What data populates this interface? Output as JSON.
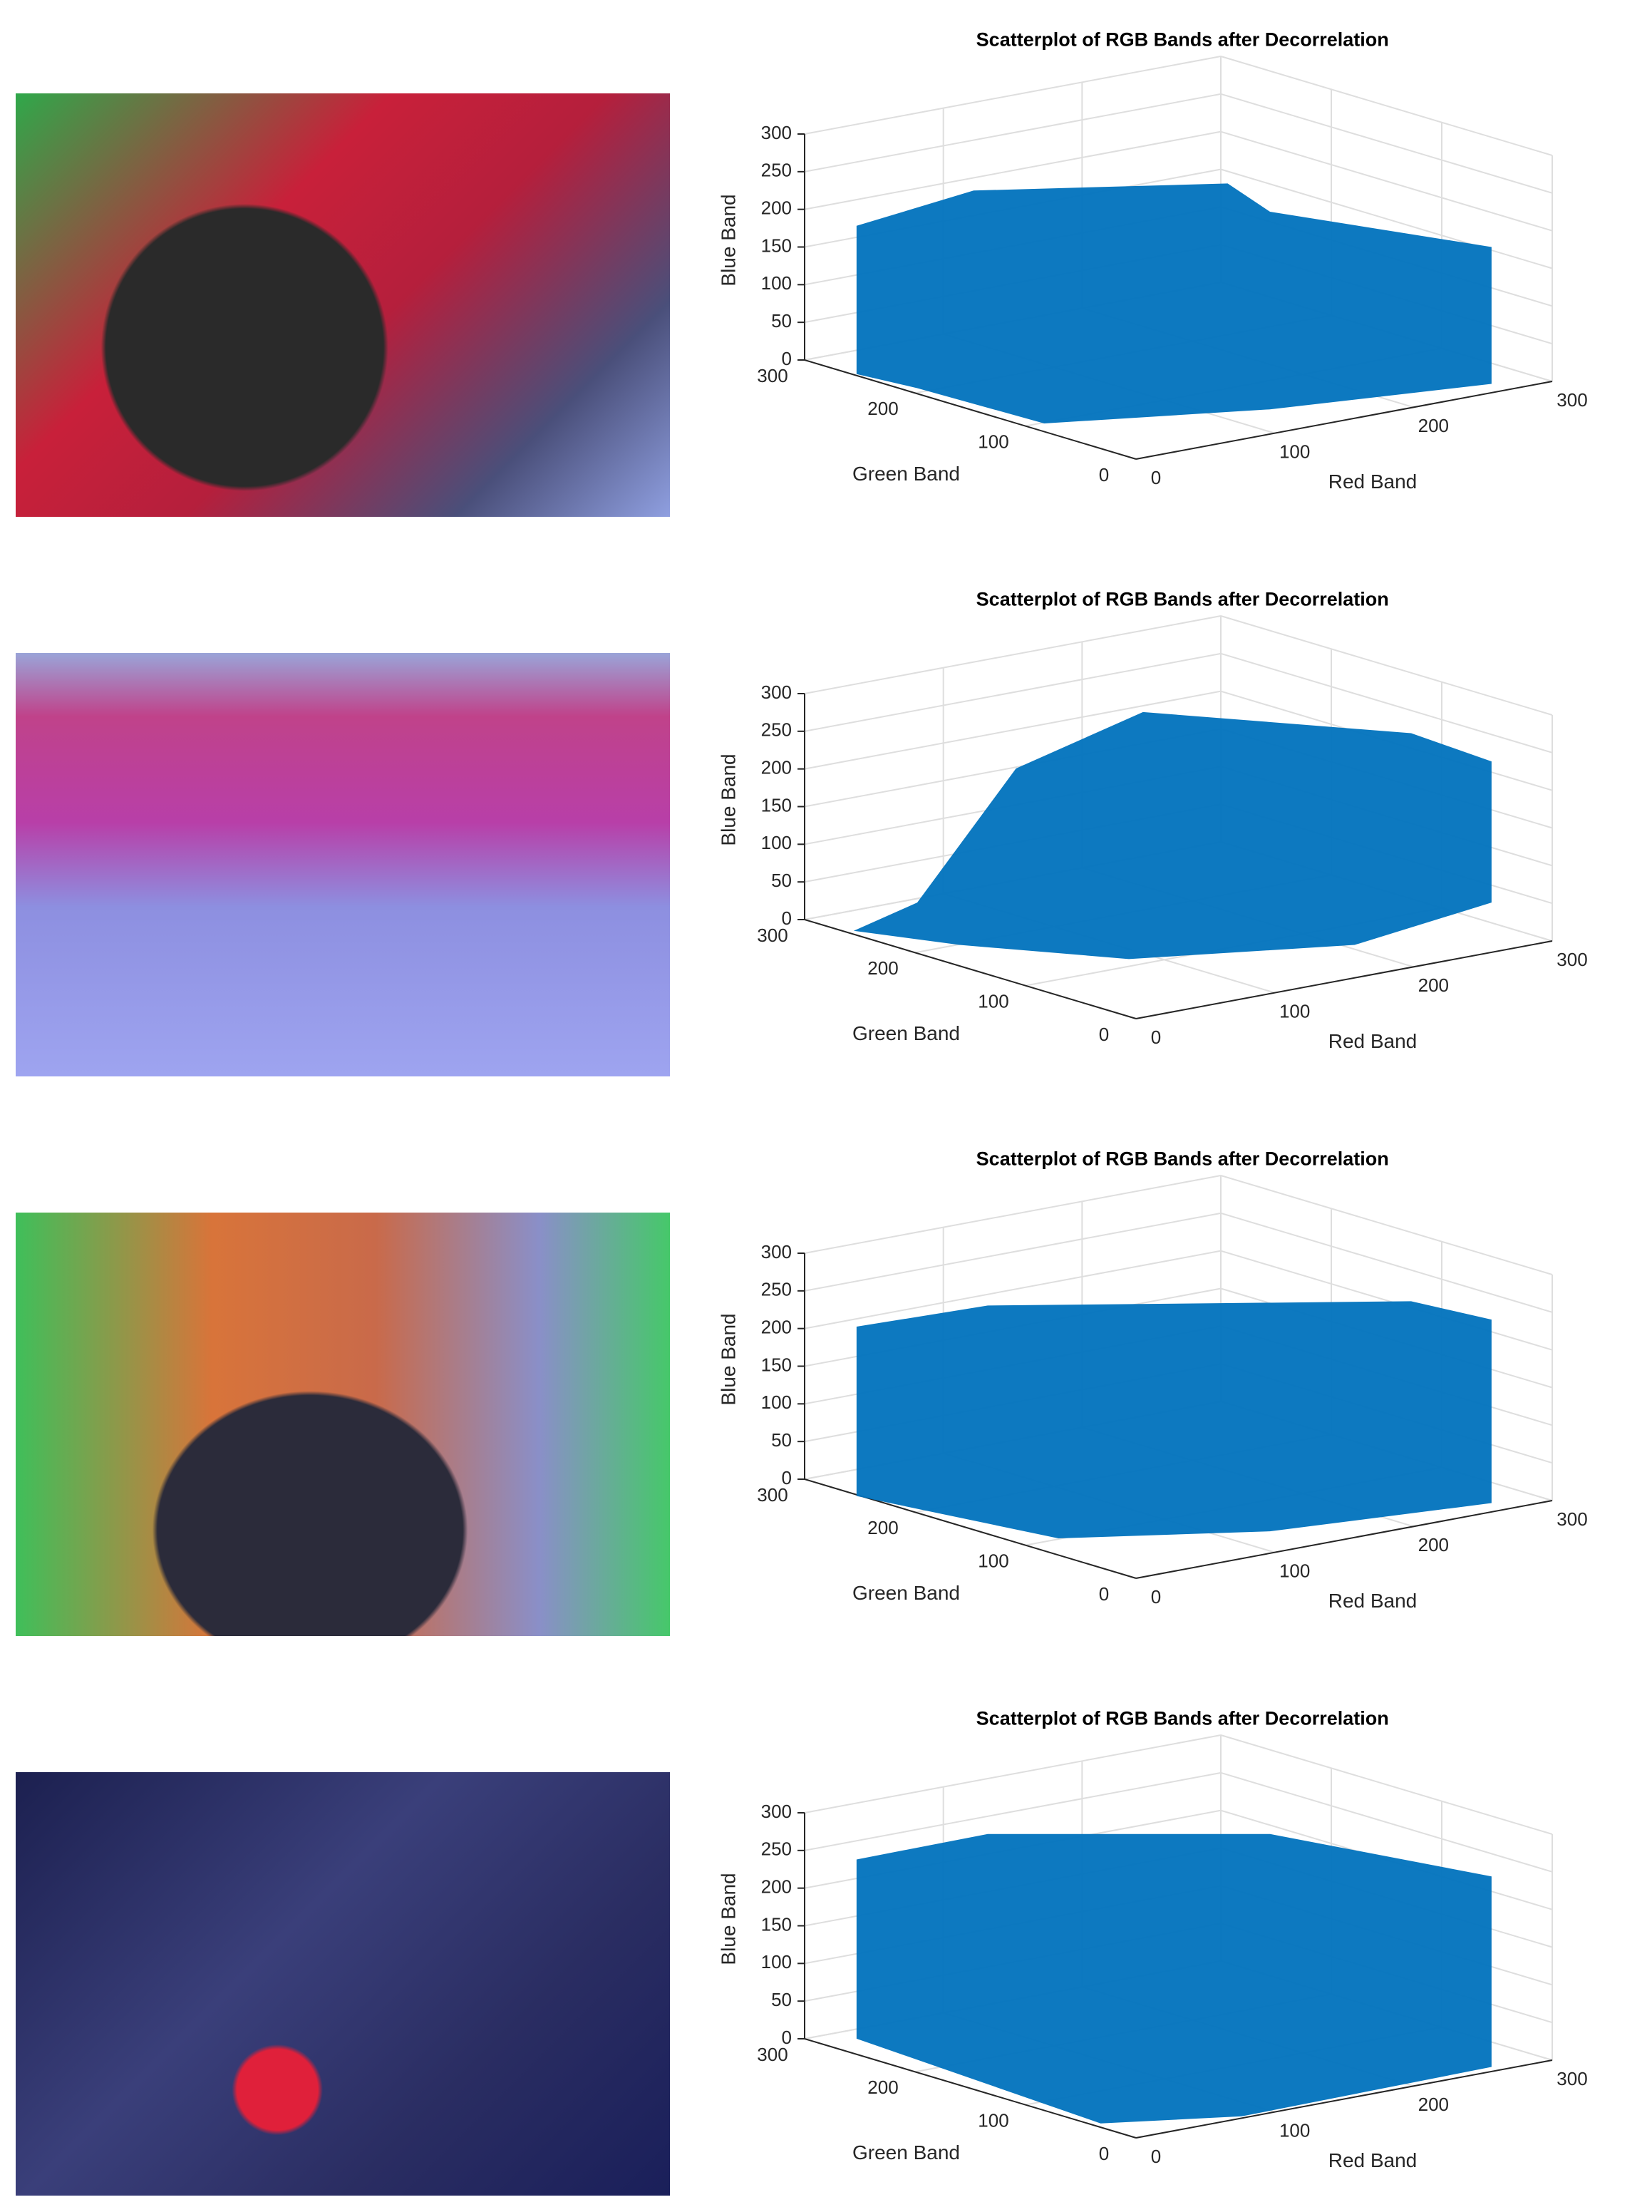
{
  "chart_data": [
    {
      "type": "scatter3d",
      "title": "Scatterplot of RGB Bands after Decorrelation",
      "xlabel": "Red Band",
      "ylabel": "Green Band",
      "zlabel": "Blue Band",
      "xlim": [
        0,
        300
      ],
      "ylim": [
        0,
        300
      ],
      "zlim": [
        0,
        300
      ],
      "xticks": [
        0,
        100,
        200,
        300
      ],
      "yticks": [
        0,
        100,
        200,
        300
      ],
      "zticks": [
        0,
        50,
        100,
        150,
        200,
        250,
        300
      ],
      "grid": true,
      "color": "#0072bd"
    },
    {
      "type": "scatter3d",
      "title": "Scatterplot of RGB Bands after Decorrelation",
      "xlabel": "Red Band",
      "ylabel": "Green Band",
      "zlabel": "Blue Band",
      "xlim": [
        0,
        300
      ],
      "ylim": [
        0,
        300
      ],
      "zlim": [
        0,
        300
      ],
      "xticks": [
        0,
        100,
        200,
        300
      ],
      "yticks": [
        0,
        100,
        200,
        300
      ],
      "zticks": [
        0,
        50,
        100,
        150,
        200,
        250,
        300
      ],
      "grid": true,
      "color": "#0072bd"
    },
    {
      "type": "scatter3d",
      "title": "Scatterplot of RGB Bands after Decorrelation",
      "xlabel": "Red Band",
      "ylabel": "Green Band",
      "zlabel": "Blue Band",
      "xlim": [
        0,
        300
      ],
      "ylim": [
        0,
        300
      ],
      "zlim": [
        0,
        300
      ],
      "xticks": [
        0,
        100,
        200,
        300
      ],
      "yticks": [
        0,
        100,
        200,
        300
      ],
      "zticks": [
        0,
        50,
        100,
        150,
        200,
        250,
        300
      ],
      "grid": true,
      "color": "#0072bd"
    },
    {
      "type": "scatter3d",
      "title": "Scatterplot of RGB Bands after Decorrelation",
      "xlabel": "Red Band",
      "ylabel": "Green Band",
      "zlabel": "Blue Band",
      "xlim": [
        0,
        300
      ],
      "ylim": [
        0,
        300
      ],
      "zlim": [
        0,
        300
      ],
      "xticks": [
        0,
        100,
        200,
        300
      ],
      "yticks": [
        0,
        100,
        200,
        300
      ],
      "zticks": [
        0,
        50,
        100,
        150,
        200,
        250,
        300
      ],
      "grid": true,
      "color": "#0072bd"
    }
  ]
}
